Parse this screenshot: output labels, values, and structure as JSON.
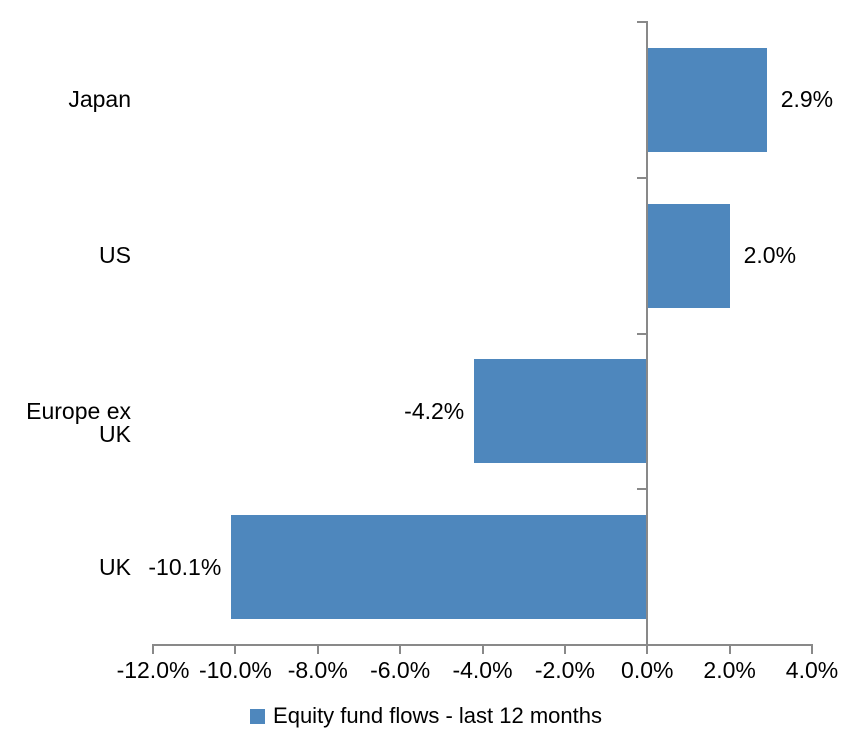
{
  "chart_data": {
    "type": "bar",
    "orientation": "horizontal",
    "title": "",
    "categories": [
      "Japan",
      "US",
      "Europe ex UK",
      "UK"
    ],
    "values": [
      2.9,
      2.0,
      -4.2,
      -10.1
    ],
    "data_labels": [
      "2.9%",
      "2.0%",
      "-4.2%",
      "-10.1%"
    ],
    "series_name": "Equity fund flows - last 12 months",
    "xlim": [
      -12,
      4
    ],
    "x_ticks": [
      -12,
      -10,
      -8,
      -6,
      -4,
      -2,
      0,
      2,
      4
    ],
    "x_tick_labels": [
      "-12.0%",
      "-10.0%",
      "-8.0%",
      "-6.0%",
      "-4.0%",
      "-2.0%",
      "0.0%",
      "2.0%",
      "4.0%"
    ],
    "grid": false,
    "legend_position": "bottom",
    "colors": {
      "bar": "#4E87BD",
      "axis": "#898989",
      "text": "#000000",
      "background": "#FFFFFF"
    }
  },
  "legend": {
    "items": [
      {
        "label": "Equity fund flows - last 12 months",
        "color": "#4E87BD"
      }
    ]
  }
}
